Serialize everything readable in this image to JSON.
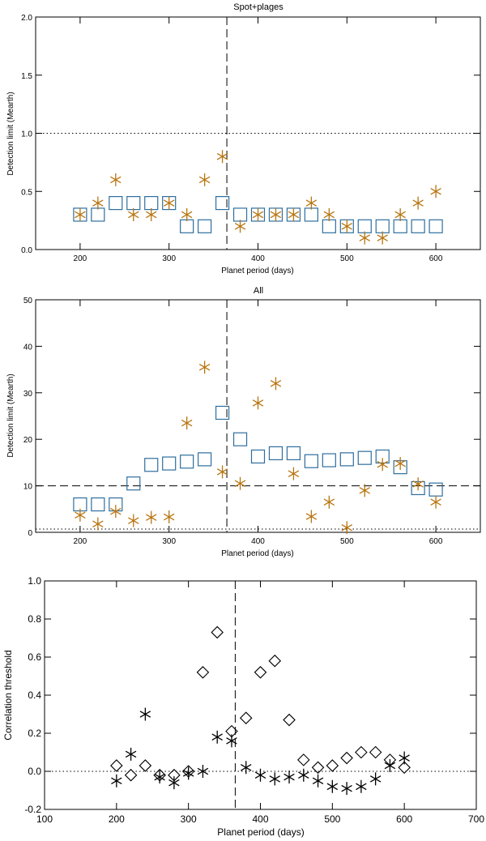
{
  "colors": {
    "square": "#2e6e9e",
    "star": "#b87510",
    "black": "#000000"
  },
  "chart_data": [
    {
      "type": "scatter",
      "title": "Spot+plages",
      "xlabel": "Planet period (days)",
      "ylabel": "Detection limit (Mearth)",
      "xlim": [
        150,
        650
      ],
      "ylim": [
        0,
        2.0
      ],
      "xticks": [
        "200",
        "300",
        "400",
        "500",
        "600"
      ],
      "yticks": [
        "0.0",
        "0.5",
        "1.0",
        "1.5",
        "2.0"
      ],
      "vline_x": 365,
      "hline_y": 1.0,
      "hline_style": "dotted",
      "series": [
        {
          "name": "squares",
          "marker": "square",
          "x": [
            200,
            220,
            240,
            260,
            280,
            300,
            320,
            340,
            360,
            380,
            400,
            420,
            440,
            460,
            480,
            500,
            520,
            540,
            560,
            580,
            600
          ],
          "y": [
            0.3,
            0.3,
            0.4,
            0.4,
            0.4,
            0.4,
            0.2,
            0.2,
            0.4,
            0.3,
            0.3,
            0.3,
            0.3,
            0.3,
            0.2,
            0.2,
            0.2,
            0.2,
            0.2,
            0.2,
            0.2
          ]
        },
        {
          "name": "stars",
          "marker": "star",
          "x": [
            200,
            220,
            240,
            260,
            280,
            300,
            320,
            340,
            360,
            380,
            400,
            420,
            440,
            460,
            480,
            500,
            520,
            540,
            560,
            580,
            600
          ],
          "y": [
            0.3,
            0.4,
            0.6,
            0.3,
            0.3,
            0.4,
            0.3,
            0.6,
            0.8,
            0.2,
            0.3,
            0.3,
            0.3,
            0.4,
            0.3,
            0.2,
            0.1,
            0.1,
            0.3,
            0.4,
            0.5
          ]
        }
      ]
    },
    {
      "type": "scatter",
      "title": "All",
      "xlabel": "Planet period (days)",
      "ylabel": "Detection limit (Mearth)",
      "xlim": [
        150,
        650
      ],
      "ylim": [
        0,
        50
      ],
      "xticks": [
        "200",
        "300",
        "400",
        "500",
        "600"
      ],
      "yticks": [
        "0",
        "10",
        "20",
        "30",
        "40",
        "50"
      ],
      "vline_x": 365,
      "hline_y": 10,
      "hline_style": "dashed",
      "hline2_y": 0.7,
      "hline2_style": "dotted",
      "series": [
        {
          "name": "squares",
          "marker": "square",
          "x": [
            200,
            220,
            240,
            260,
            280,
            300,
            320,
            340,
            360,
            380,
            400,
            420,
            440,
            460,
            480,
            500,
            520,
            540,
            560,
            580,
            600
          ],
          "y": [
            6,
            6,
            6,
            10.5,
            14.5,
            14.8,
            15.2,
            15.7,
            25.7,
            20,
            16.3,
            17,
            17,
            15.3,
            15.5,
            15.7,
            16,
            16.3,
            14,
            9.5,
            9.2
          ]
        },
        {
          "name": "stars",
          "marker": "star",
          "x": [
            200,
            220,
            240,
            260,
            280,
            300,
            320,
            340,
            360,
            380,
            400,
            420,
            440,
            460,
            480,
            500,
            520,
            540,
            560,
            580,
            600
          ],
          "y": [
            3.7,
            1.8,
            4.5,
            2.5,
            3.2,
            3.3,
            23.5,
            35.5,
            13,
            10.5,
            27.8,
            32,
            12.6,
            3.4,
            6.5,
            1,
            9,
            14.6,
            14.8,
            10.4,
            6.5
          ]
        }
      ]
    },
    {
      "type": "scatter",
      "title": "",
      "xlabel": "Planet period (days)",
      "ylabel": "Correlation threshold",
      "xlim": [
        100,
        700
      ],
      "ylim": [
        -0.2,
        1.0
      ],
      "xticks": [
        "100",
        "200",
        "300",
        "400",
        "500",
        "600",
        "700"
      ],
      "yticks": [
        "-0.2",
        "0.0",
        "0.2",
        "0.4",
        "0.6",
        "0.8",
        "1.0"
      ],
      "vline_x": 365,
      "hline_y": 0,
      "hline_style": "dotted",
      "series": [
        {
          "name": "diamonds",
          "marker": "diamond",
          "x": [
            200,
            220,
            240,
            260,
            280,
            300,
            320,
            340,
            360,
            380,
            400,
            420,
            440,
            460,
            480,
            500,
            520,
            540,
            560,
            580,
            600
          ],
          "y": [
            0.03,
            -0.02,
            0.03,
            -0.02,
            -0.02,
            0.0,
            0.52,
            0.73,
            0.21,
            0.28,
            0.52,
            0.58,
            0.27,
            0.06,
            0.02,
            0.03,
            0.07,
            0.1,
            0.1,
            0.06,
            0.02
          ]
        },
        {
          "name": "stars",
          "marker": "star",
          "x": [
            200,
            220,
            240,
            260,
            280,
            300,
            320,
            340,
            360,
            380,
            400,
            420,
            440,
            460,
            480,
            500,
            520,
            540,
            560,
            580,
            600
          ],
          "y": [
            -0.05,
            0.09,
            0.3,
            -0.03,
            -0.06,
            -0.01,
            0.0,
            0.18,
            0.16,
            0.02,
            -0.02,
            -0.04,
            -0.03,
            -0.02,
            -0.05,
            -0.08,
            -0.09,
            -0.08,
            -0.04,
            0.03,
            0.07
          ]
        }
      ]
    }
  ]
}
